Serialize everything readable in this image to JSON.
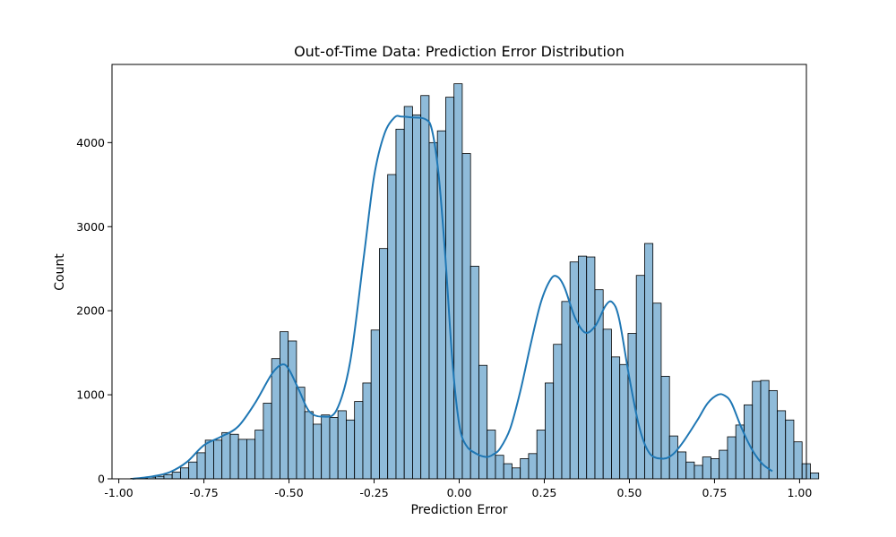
{
  "chart_data": {
    "type": "bar",
    "title": "Out-of-Time Data: Prediction Error Distribution",
    "xlabel": "Prediction Error",
    "ylabel": "Count",
    "xlim": [
      -1.02,
      1.02
    ],
    "ylim": [
      0,
      4930
    ],
    "xticks": [
      "-1.00",
      "-0.75",
      "-0.50",
      "-0.25",
      "0.00",
      "0.25",
      "0.50",
      "0.75",
      "1.00"
    ],
    "xtick_values": [
      -1.0,
      -0.75,
      -0.5,
      -0.25,
      0.0,
      0.25,
      0.5,
      0.75,
      1.0
    ],
    "yticks": [
      "0",
      "1000",
      "2000",
      "3000",
      "4000"
    ],
    "ytick_values": [
      0,
      1000,
      2000,
      3000,
      4000
    ],
    "grid": false,
    "bar_color": "#1f77b4",
    "bar_fill_opacity": 0.5,
    "bar_edge_color": "#000000",
    "kde_color": "#1f77b4",
    "bin_start": -0.965,
    "bin_width": 0.02435,
    "values": [
      5,
      10,
      20,
      30,
      50,
      80,
      130,
      200,
      310,
      460,
      460,
      550,
      530,
      470,
      470,
      580,
      900,
      1430,
      1750,
      1640,
      1090,
      800,
      650,
      760,
      730,
      810,
      700,
      920,
      1140,
      1770,
      2740,
      3620,
      4160,
      4430,
      4330,
      4560,
      4000,
      4140,
      4540,
      4700,
      3870,
      2530,
      1350,
      580,
      280,
      180,
      130,
      240,
      300,
      580,
      1140,
      1600,
      2110,
      2580,
      2650,
      2640,
      2250,
      1780,
      1450,
      1360,
      1730,
      2420,
      2800,
      2090,
      1220,
      510,
      320,
      200,
      160,
      260,
      240,
      340,
      500,
      640,
      880,
      1160,
      1170,
      1050,
      810,
      700,
      440,
      180,
      70
    ],
    "kde": {
      "x": [
        -0.96,
        -0.9,
        -0.85,
        -0.8,
        -0.75,
        -0.7,
        -0.65,
        -0.6,
        -0.55,
        -0.52,
        -0.5,
        -0.47,
        -0.44,
        -0.4,
        -0.36,
        -0.32,
        -0.28,
        -0.25,
        -0.22,
        -0.19,
        -0.17,
        -0.14,
        -0.1,
        -0.08,
        -0.06,
        -0.04,
        -0.02,
        0.0,
        0.02,
        0.05,
        0.08,
        0.1,
        0.12,
        0.15,
        0.18,
        0.21,
        0.24,
        0.27,
        0.29,
        0.31,
        0.34,
        0.37,
        0.4,
        0.43,
        0.45,
        0.47,
        0.5,
        0.53,
        0.56,
        0.6,
        0.63,
        0.66,
        0.7,
        0.73,
        0.76,
        0.78,
        0.8,
        0.83,
        0.86,
        0.89,
        0.92
      ],
      "y": [
        0,
        30,
        80,
        200,
        400,
        500,
        620,
        900,
        1250,
        1360,
        1300,
        1050,
        800,
        740,
        820,
        1400,
        2650,
        3600,
        4100,
        4300,
        4310,
        4300,
        4280,
        4150,
        3600,
        2600,
        1400,
        650,
        400,
        300,
        260,
        290,
        360,
        600,
        1050,
        1600,
        2100,
        2380,
        2400,
        2270,
        1920,
        1740,
        1820,
        2060,
        2100,
        1900,
        1200,
        600,
        300,
        240,
        300,
        450,
        700,
        900,
        1000,
        990,
        900,
        600,
        350,
        180,
        90
      ]
    }
  }
}
